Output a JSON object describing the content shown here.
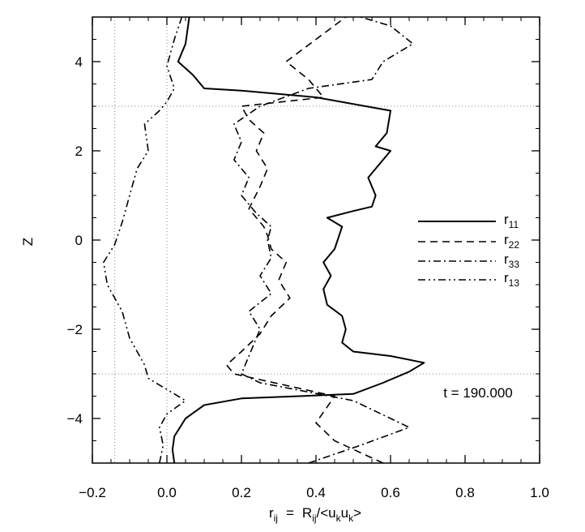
{
  "chart_data": {
    "type": "line",
    "orientation": "profile",
    "xlabel": "r_ij = R_ij/<u_k u_k>",
    "xlabel_parts": {
      "r": "r",
      "r_sub": "ij",
      "eq": "=",
      "R": "R",
      "R_sub": "ij",
      "slash": "/<u",
      "k1": "k",
      "u2": "u",
      "k2": "k",
      "close": ">"
    },
    "ylabel": "Z",
    "xlim": [
      -0.2,
      1.0
    ],
    "ylim": [
      -5,
      5
    ],
    "xticks": [
      -0.2,
      0.0,
      0.2,
      0.4,
      0.6,
      0.8,
      1.0
    ],
    "xtick_labels": [
      "−0.2",
      "0.0",
      "0.2",
      "0.4",
      "0.6",
      "0.8",
      "1.0"
    ],
    "yticks": [
      -4,
      -2,
      0,
      2,
      4
    ],
    "ytick_labels": [
      "−4",
      "−2",
      "0",
      "2",
      "4"
    ],
    "annotation": "t = 190.000",
    "legend_position": "right-middle",
    "reference_lines": {
      "vertical": [
        -0.14,
        0.0
      ],
      "horizontal": [
        -3.0,
        3.0
      ]
    },
    "series": [
      {
        "name": "r_11",
        "name_base": "r",
        "name_sub": "11",
        "style": "solid",
        "points": [
          [
            0.02,
            -5.0
          ],
          [
            0.015,
            -4.7
          ],
          [
            0.02,
            -4.4
          ],
          [
            0.05,
            -4.0
          ],
          [
            0.1,
            -3.7
          ],
          [
            0.2,
            -3.55
          ],
          [
            0.5,
            -3.45
          ],
          [
            0.58,
            -3.2
          ],
          [
            0.65,
            -2.95
          ],
          [
            0.69,
            -2.75
          ],
          [
            0.6,
            -2.6
          ],
          [
            0.5,
            -2.5
          ],
          [
            0.47,
            -2.3
          ],
          [
            0.48,
            -2.0
          ],
          [
            0.47,
            -1.7
          ],
          [
            0.43,
            -1.45
          ],
          [
            0.42,
            -1.1
          ],
          [
            0.44,
            -0.8
          ],
          [
            0.42,
            -0.5
          ],
          [
            0.45,
            -0.2
          ],
          [
            0.46,
            0.05
          ],
          [
            0.47,
            0.3
          ],
          [
            0.43,
            0.5
          ],
          [
            0.5,
            0.65
          ],
          [
            0.55,
            0.75
          ],
          [
            0.56,
            1.0
          ],
          [
            0.54,
            1.4
          ],
          [
            0.58,
            1.8
          ],
          [
            0.6,
            2.0
          ],
          [
            0.56,
            2.1
          ],
          [
            0.59,
            2.4
          ],
          [
            0.6,
            2.9
          ],
          [
            0.4,
            3.2
          ],
          [
            0.2,
            3.35
          ],
          [
            0.1,
            3.4
          ],
          [
            0.07,
            3.7
          ],
          [
            0.03,
            4.0
          ],
          [
            0.05,
            4.4
          ],
          [
            0.06,
            5.0
          ]
        ]
      },
      {
        "name": "r_22",
        "name_base": "r",
        "name_sub": "22",
        "style": "dashed",
        "points": [
          [
            0.58,
            -5.0
          ],
          [
            0.45,
            -4.5
          ],
          [
            0.4,
            -4.1
          ],
          [
            0.45,
            -3.5
          ],
          [
            0.18,
            -3.0
          ],
          [
            0.16,
            -2.8
          ],
          [
            0.2,
            -2.5
          ],
          [
            0.25,
            -2.1
          ],
          [
            0.28,
            -1.7
          ],
          [
            0.33,
            -1.3
          ],
          [
            0.3,
            -0.9
          ],
          [
            0.32,
            -0.5
          ],
          [
            0.28,
            -0.2
          ],
          [
            0.27,
            0.1
          ],
          [
            0.26,
            0.3
          ],
          [
            0.22,
            0.7
          ],
          [
            0.25,
            1.2
          ],
          [
            0.27,
            1.6
          ],
          [
            0.24,
            2.0
          ],
          [
            0.26,
            2.4
          ],
          [
            0.22,
            2.7
          ],
          [
            0.2,
            3.0
          ],
          [
            0.42,
            3.2
          ],
          [
            0.38,
            3.6
          ],
          [
            0.32,
            4.0
          ],
          [
            0.4,
            4.5
          ],
          [
            0.48,
            5.0
          ]
        ]
      },
      {
        "name": "r_33",
        "name_base": "r",
        "name_sub": "33",
        "style": "dashdot",
        "points": [
          [
            0.38,
            -5.0
          ],
          [
            0.52,
            -4.6
          ],
          [
            0.65,
            -4.2
          ],
          [
            0.5,
            -3.6
          ],
          [
            0.25,
            -3.2
          ],
          [
            0.2,
            -3.0
          ],
          [
            0.22,
            -2.6
          ],
          [
            0.25,
            -2.0
          ],
          [
            0.22,
            -1.6
          ],
          [
            0.28,
            -1.2
          ],
          [
            0.25,
            -0.8
          ],
          [
            0.28,
            -0.4
          ],
          [
            0.27,
            0.0
          ],
          [
            0.28,
            0.3
          ],
          [
            0.24,
            0.6
          ],
          [
            0.2,
            1.0
          ],
          [
            0.22,
            1.4
          ],
          [
            0.18,
            1.8
          ],
          [
            0.2,
            2.2
          ],
          [
            0.18,
            2.6
          ],
          [
            0.25,
            3.0
          ],
          [
            0.38,
            3.4
          ],
          [
            0.55,
            3.6
          ],
          [
            0.58,
            4.0
          ],
          [
            0.66,
            4.4
          ],
          [
            0.6,
            4.8
          ],
          [
            0.52,
            5.0
          ]
        ]
      },
      {
        "name": "r_13",
        "name_base": "r",
        "name_sub": "13",
        "style": "dashdotdot",
        "points": [
          [
            -0.02,
            -5.0
          ],
          [
            -0.01,
            -4.6
          ],
          [
            -0.02,
            -4.2
          ],
          [
            0.0,
            -3.9
          ],
          [
            0.05,
            -3.6
          ],
          [
            -0.05,
            -3.1
          ],
          [
            -0.06,
            -2.8
          ],
          [
            -0.1,
            -2.2
          ],
          [
            -0.12,
            -1.6
          ],
          [
            -0.16,
            -1.0
          ],
          [
            -0.17,
            -0.5
          ],
          [
            -0.14,
            -0.1
          ],
          [
            -0.12,
            0.4
          ],
          [
            -0.1,
            1.0
          ],
          [
            -0.08,
            1.6
          ],
          [
            -0.05,
            2.0
          ],
          [
            -0.06,
            2.6
          ],
          [
            -0.02,
            2.9
          ],
          [
            0.0,
            3.1
          ],
          [
            0.02,
            3.4
          ],
          [
            0.0,
            3.9
          ],
          [
            0.02,
            4.5
          ],
          [
            0.04,
            5.0
          ]
        ]
      }
    ]
  }
}
